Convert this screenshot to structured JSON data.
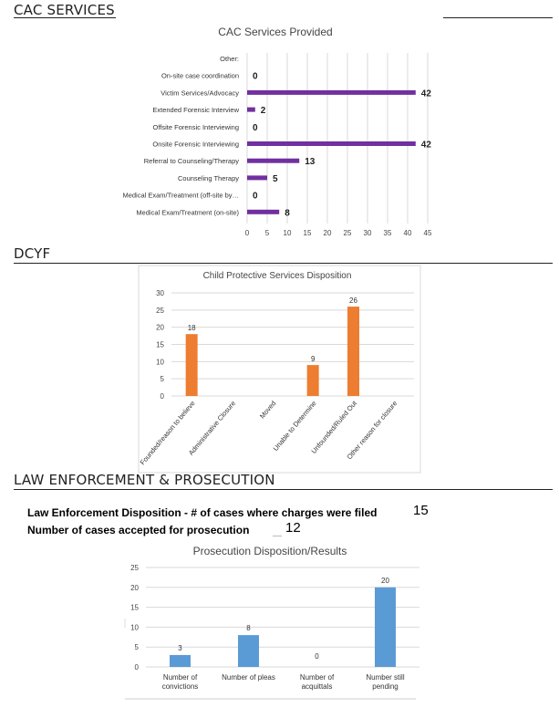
{
  "sections": {
    "cac": "CAC SERVICES",
    "dcyf": "DCYF",
    "law": "LAW ENFORCEMENT & PROSECUTION"
  },
  "stats": {
    "charges_label": "Law Enforcement Disposition - # of cases where charges were filed",
    "charges_value": "15",
    "prosecution_label": "Number of cases accepted for prosecution",
    "prosecution_value": "12"
  },
  "colors": {
    "cac_bar": "#7030a0",
    "dcyf_bar": "#ed7d31",
    "prosecution_bar": "#5b9bd5",
    "grid": "#d9d9d9"
  },
  "chart_data": [
    {
      "type": "bar",
      "orientation": "horizontal",
      "title": "CAC Services Provided",
      "categories": [
        "Other:",
        "On-site case coordination",
        "Victim Services/Advocacy",
        "Extended Forensic Interview",
        "Offsite Forensic Interviewing",
        "Onsite Forensic Interviewing",
        "Referral to Counseling/Therapy",
        "Counseling Therapy",
        "Medical Exam/Treatment (off-site by…",
        "Medical Exam/Treatment (on-site)"
      ],
      "values": [
        null,
        0,
        42,
        2,
        0,
        42,
        13,
        5,
        0,
        8
      ],
      "data_labels": [
        "",
        "0",
        "42",
        "2",
        "0",
        "42",
        "13",
        "5",
        "0",
        "8"
      ],
      "xlim": [
        0,
        45
      ],
      "ticks": [
        "0",
        "5",
        "10",
        "15",
        "20",
        "25",
        "30",
        "35",
        "40",
        "45"
      ],
      "grid": true
    },
    {
      "type": "bar",
      "title": "Child Protective Services Disposition",
      "categories": [
        "Founded/reason to believe",
        "Administrative Closure",
        "Moved",
        "Unable to Determine",
        "Unfounded/Ruled Out",
        "Other reason for closure"
      ],
      "values": [
        18,
        null,
        null,
        9,
        26,
        null
      ],
      "data_labels": [
        "18",
        "",
        "",
        "9",
        "26",
        ""
      ],
      "ylim": [
        0,
        30
      ],
      "ticks": [
        "0",
        "5",
        "10",
        "15",
        "20",
        "25",
        "30"
      ],
      "grid": true
    },
    {
      "type": "bar",
      "title": "Prosecution Disposition/Results",
      "categories": [
        [
          "Number of",
          "convictions"
        ],
        [
          "Number of pleas"
        ],
        [
          "Number of",
          "acquittals"
        ],
        [
          "Number still",
          "pending"
        ]
      ],
      "values": [
        3,
        8,
        0,
        20
      ],
      "data_labels": [
        "3",
        "8",
        "0",
        "20"
      ],
      "ylim": [
        0,
        25
      ],
      "ticks": [
        "0",
        "5",
        "10",
        "15",
        "20",
        "25"
      ],
      "grid": true
    }
  ]
}
